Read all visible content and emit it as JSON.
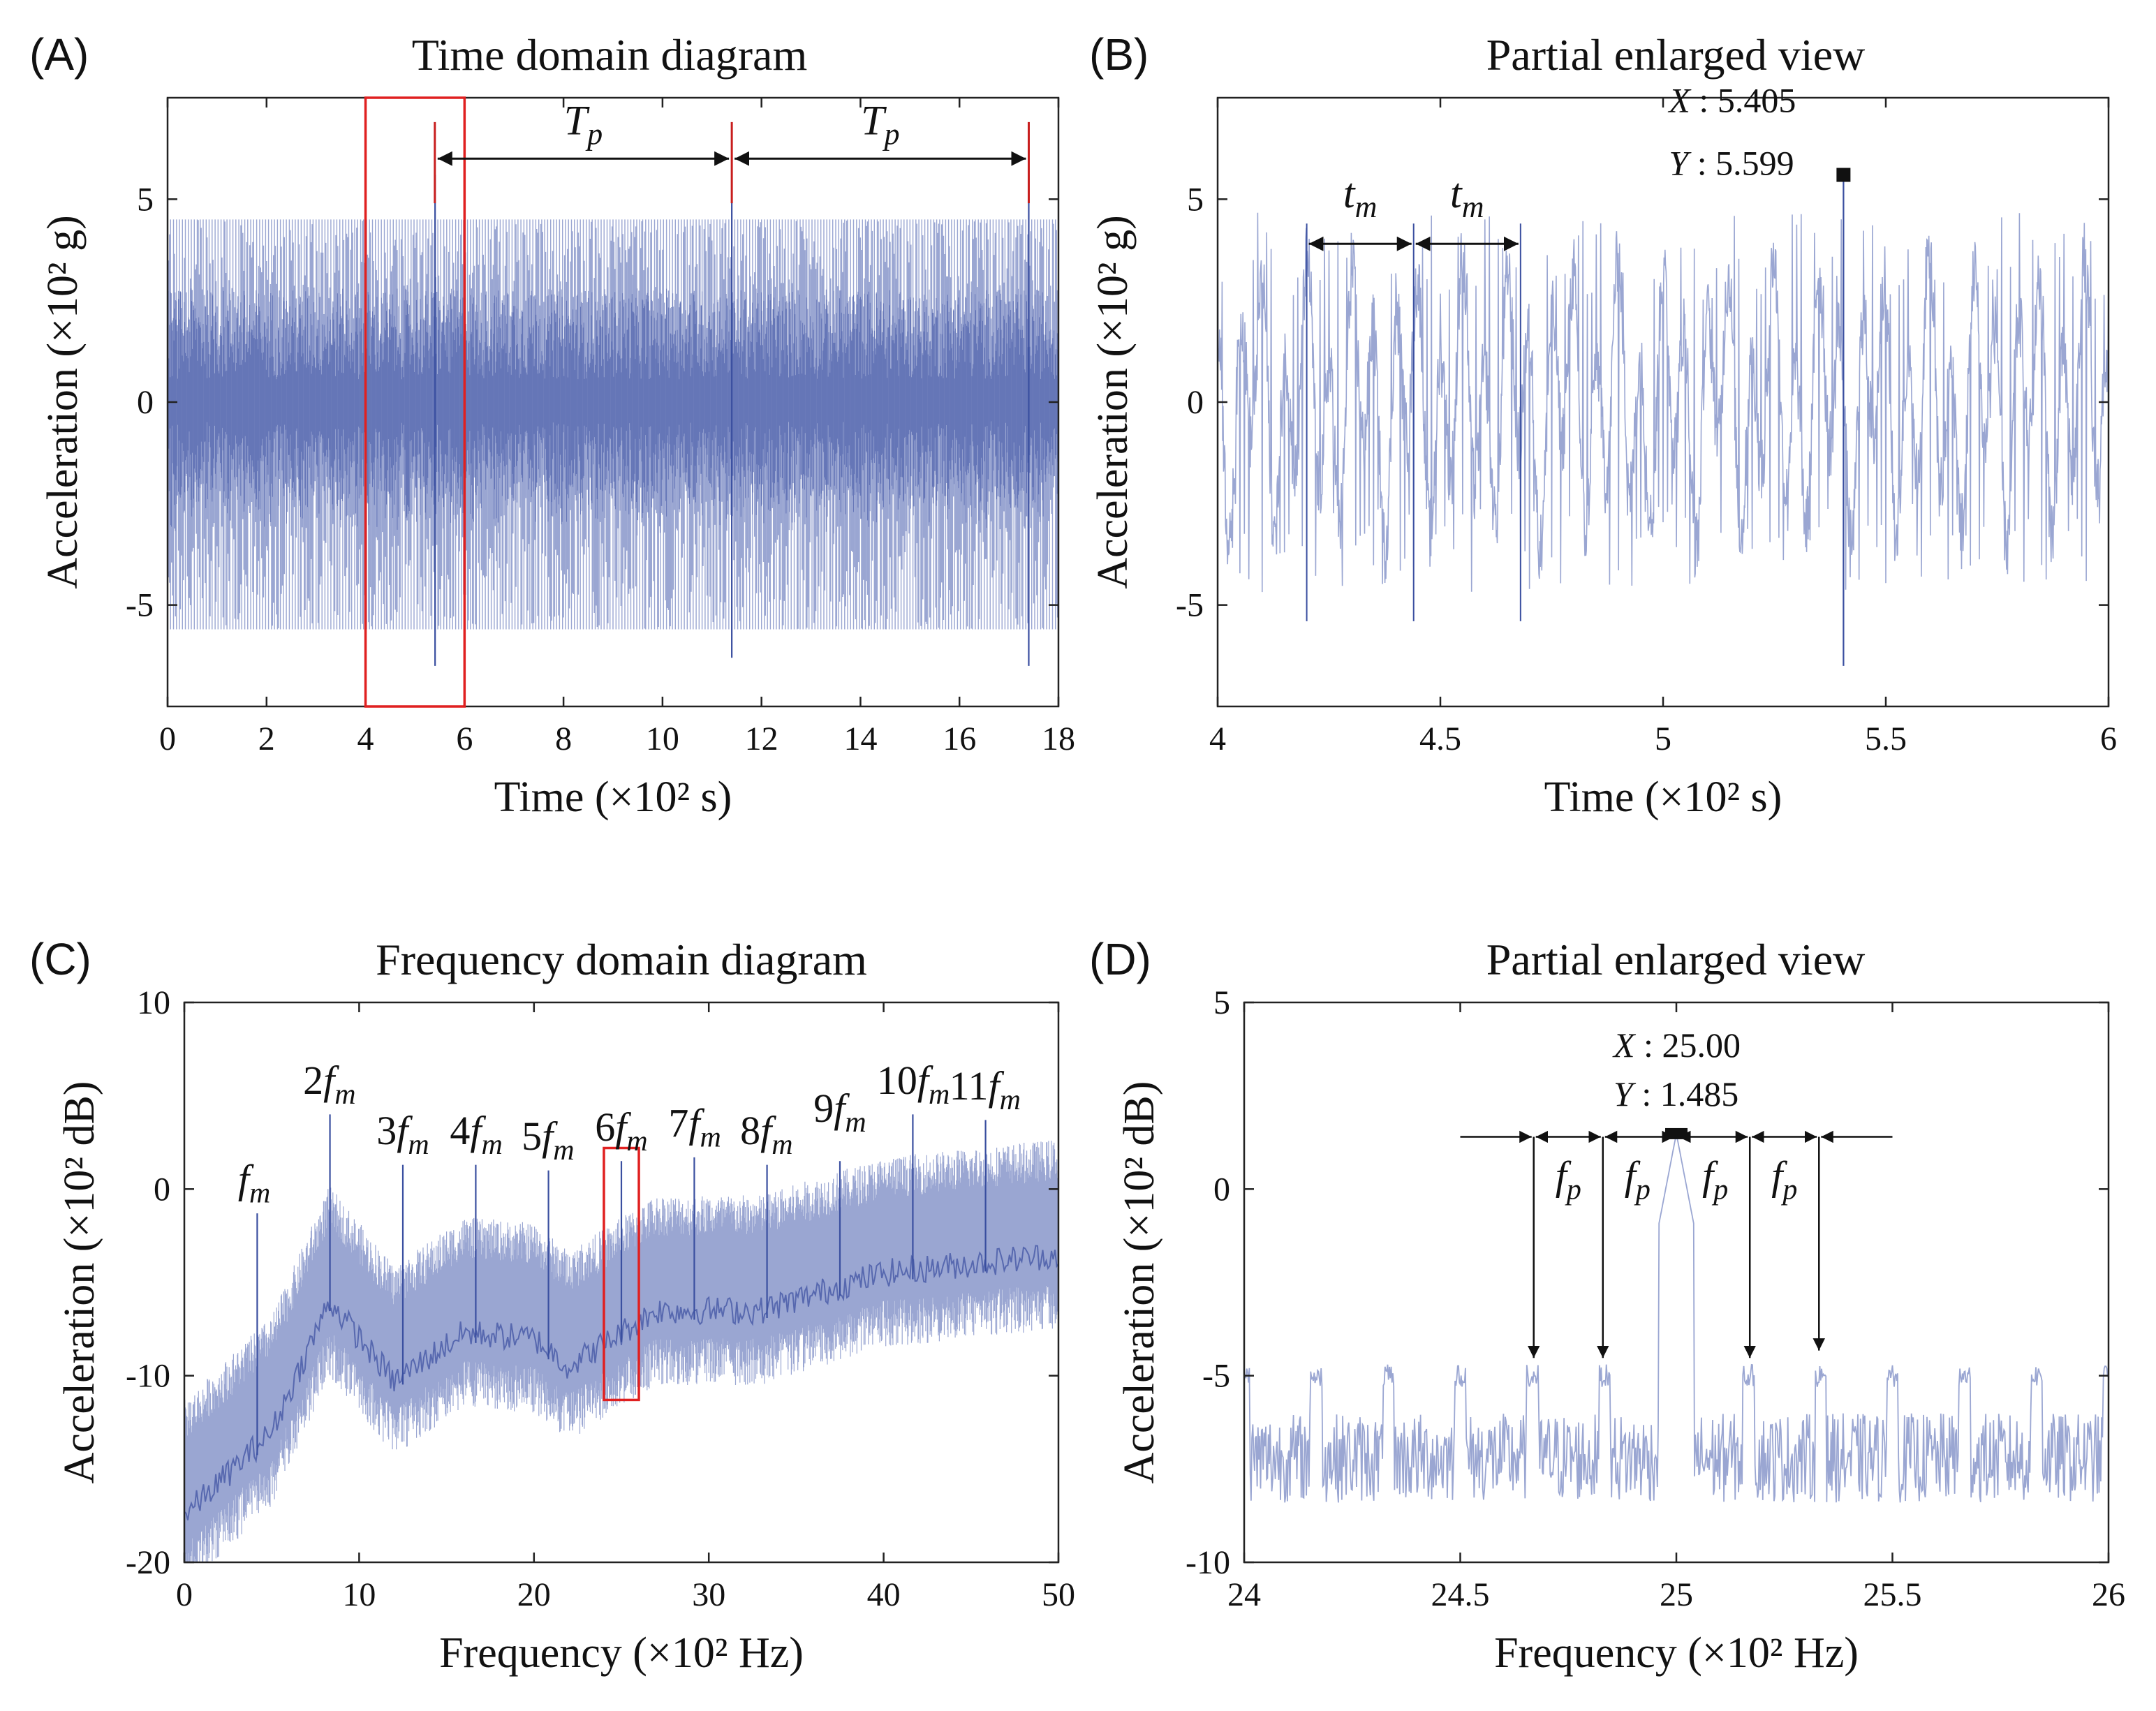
{
  "figure": {
    "colors": {
      "signal": "#3a4fa0",
      "signal_light": "#9aa6d2",
      "highlight_box": "#e02020",
      "markers": "#c81e1e",
      "axes": "#222222"
    }
  },
  "chart_data": [
    {
      "id": "A",
      "panel_letter": "(A)",
      "type": "line",
      "title": "Time domain diagram",
      "xlabel": "Time (×10² s)",
      "ylabel": "Acceleration (×10² g)",
      "xlim": [
        0,
        18
      ],
      "ylim": [
        -7.5,
        7.5
      ],
      "xticks": [
        0,
        2,
        4,
        6,
        8,
        10,
        12,
        14,
        16,
        18
      ],
      "xtick_labels": [
        "0",
        "2",
        "4",
        "6",
        "8",
        "10",
        "12",
        "14",
        "16",
        "18"
      ],
      "yticks": [
        -5,
        0,
        5
      ],
      "ytick_labels": [
        "-5",
        "0",
        "5"
      ],
      "series": [
        {
          "description_kind": "dense vibration signal",
          "envelope_upper": 4.5,
          "envelope_lower": -5.6,
          "impulses": [
            {
              "x": 5.405,
              "y": 5.6,
              "y_min": -6.5
            },
            {
              "x": 11.4,
              "y": 5.6,
              "y_min": -6.3
            },
            {
              "x": 17.4,
              "y": 5.6,
              "y_min": -6.5
            }
          ]
        }
      ],
      "highlight_box": {
        "x": [
          4,
          6
        ],
        "y": [
          -7.5,
          7.5
        ]
      },
      "period_markers": {
        "x": [
          5.4,
          11.4,
          17.4
        ],
        "y": 6.0
      },
      "annotations": [
        {
          "text": "T",
          "sub": "p",
          "x": 8.4,
          "y": 6.6
        },
        {
          "text": "T",
          "sub": "p",
          "x": 14.4,
          "y": 6.6
        }
      ]
    },
    {
      "id": "B",
      "panel_letter": "(B)",
      "type": "line",
      "title": "Partial enlarged view",
      "xlabel": "Time (×10² s)",
      "ylabel": "Acceleration (×10² g)",
      "xlim": [
        4,
        6
      ],
      "ylim": [
        -7.5,
        7.5
      ],
      "xticks": [
        4,
        4.5,
        5,
        5.5,
        6
      ],
      "xtick_labels": [
        "4",
        "4.5",
        "5",
        "5.5",
        "6"
      ],
      "yticks": [
        -5,
        0,
        5
      ],
      "ytick_labels": [
        "-5",
        "0",
        "5"
      ],
      "series": [
        {
          "description_kind": "zoomed vibration signal",
          "mesh_period": 0.24,
          "mesh_peaks_x": [
            4.2,
            4.44,
            4.68
          ],
          "peak": {
            "x": 5.405,
            "y": 5.599
          }
        }
      ],
      "datatip": {
        "x_label": "X",
        "x_value": "5.405",
        "y_label": "Y",
        "y_value": "5.599",
        "x": 5.405,
        "y": 5.599
      },
      "annotations": [
        {
          "text": "t",
          "sub": "m",
          "x": 4.32,
          "y": 4.8
        },
        {
          "text": "t",
          "sub": "m",
          "x": 4.56,
          "y": 4.8
        }
      ]
    },
    {
      "id": "C",
      "panel_letter": "(C)",
      "type": "line",
      "title": "Frequency domain diagram",
      "xlabel": "Frequency (×10² Hz)",
      "ylabel": "Acceleration (×10² dB)",
      "xlim": [
        0,
        50
      ],
      "ylim": [
        -20,
        10
      ],
      "xticks": [
        0,
        10,
        20,
        30,
        40,
        50
      ],
      "xtick_labels": [
        "0",
        "10",
        "20",
        "30",
        "40",
        "50"
      ],
      "yticks": [
        -20,
        -10,
        0,
        10
      ],
      "ytick_labels": [
        "-20",
        "-10",
        "0",
        "10"
      ],
      "series": [
        {
          "description_kind": "spectrum",
          "baseline": [
            [
              0,
              -15
            ],
            [
              5,
              -10.5
            ],
            [
              8.3,
              -3.5
            ],
            [
              12,
              -7.8
            ],
            [
              16,
              -5.2
            ],
            [
              20,
              -5.5
            ],
            [
              22,
              -7
            ],
            [
              27,
              -4
            ],
            [
              33,
              -4
            ],
            [
              40,
              -2
            ],
            [
              50,
              -1
            ]
          ],
          "harmonics": [
            {
              "k": 1,
              "x": 4.17,
              "y": -1.3
            },
            {
              "k": 2,
              "x": 8.33,
              "y": 4.0
            },
            {
              "k": 3,
              "x": 12.5,
              "y": 1.3
            },
            {
              "k": 4,
              "x": 16.67,
              "y": 1.3
            },
            {
              "k": 5,
              "x": 20.83,
              "y": 1.0
            },
            {
              "k": 6,
              "x": 25.0,
              "y": 1.5
            },
            {
              "k": 7,
              "x": 29.17,
              "y": 1.7
            },
            {
              "k": 8,
              "x": 33.33,
              "y": 1.3
            },
            {
              "k": 9,
              "x": 37.5,
              "y": 1.5
            },
            {
              "k": 10,
              "x": 41.67,
              "y": 4.0
            },
            {
              "k": 11,
              "x": 45.83,
              "y": 3.7
            }
          ]
        }
      ],
      "highlight_box": {
        "x": [
          24,
          26
        ],
        "y": [
          -11.3,
          2.2
        ]
      },
      "annotations": [
        {
          "text": "",
          "ital": "f",
          "sub": "m",
          "x": 4.0,
          "y": -0.2
        },
        {
          "text": "2",
          "ital": "f",
          "sub": "m",
          "x": 8.3,
          "y": 5.1
        },
        {
          "text": "3",
          "ital": "f",
          "sub": "m",
          "x": 12.5,
          "y": 2.4
        },
        {
          "text": "4",
          "ital": "f",
          "sub": "m",
          "x": 16.7,
          "y": 2.4
        },
        {
          "text": "5",
          "ital": "f",
          "sub": "m",
          "x": 20.8,
          "y": 2.1
        },
        {
          "text": "6",
          "ital": "f",
          "sub": "m",
          "x": 25.0,
          "y": 2.6
        },
        {
          "text": "7",
          "ital": "f",
          "sub": "m",
          "x": 29.2,
          "y": 2.8
        },
        {
          "text": "8",
          "ital": "f",
          "sub": "m",
          "x": 33.3,
          "y": 2.4
        },
        {
          "text": "9",
          "ital": "f",
          "sub": "m",
          "x": 37.5,
          "y": 3.6
        },
        {
          "text": "10",
          "ital": "f",
          "sub": "m",
          "x": 41.7,
          "y": 5.1
        },
        {
          "text": "11",
          "ital": "f",
          "sub": "m",
          "x": 45.8,
          "y": 4.8
        }
      ]
    },
    {
      "id": "D",
      "panel_letter": "(D)",
      "type": "line",
      "title": "Partial enlarged view",
      "xlabel": "Frequency (×10² Hz)",
      "ylabel": "Acceleration (×10² dB)",
      "xlim": [
        24,
        26
      ],
      "ylim": [
        -10,
        5
      ],
      "xticks": [
        24,
        24.5,
        25,
        25.5,
        26
      ],
      "xtick_labels": [
        "24",
        "24.5",
        "25",
        "25.5",
        "26"
      ],
      "yticks": [
        -10,
        -5,
        0,
        5
      ],
      "ytick_labels": [
        "-10",
        "-5",
        "0",
        "5"
      ],
      "series": [
        {
          "description_kind": "zoomed spectrum",
          "peak": {
            "x": 25.0,
            "y": 1.485
          },
          "sidebands": [
            {
              "x": 24.67,
              "y": -4.6
            },
            {
              "x": 24.83,
              "y": -4.6
            },
            {
              "x": 25.17,
              "y": -4.6
            },
            {
              "x": 25.33,
              "y": -4.4
            }
          ],
          "noise_floor": -7.2
        }
      ],
      "datatip": {
        "x_label": "X",
        "x_value": "25.00",
        "y_label": "Y",
        "y_value": "1.485",
        "x": 25.0,
        "y": 1.485
      },
      "sideband_arrows": {
        "y": 1.4,
        "x": [
          24.67,
          24.83,
          25.0,
          25.17,
          25.33
        ],
        "extend": [
          24.5,
          25.5
        ]
      },
      "annotations": [
        {
          "text": "f",
          "sub": "p",
          "x": 24.75,
          "y": 0.0
        },
        {
          "text": "f",
          "sub": "p",
          "x": 24.91,
          "y": 0.0
        },
        {
          "text": "f",
          "sub": "p",
          "x": 25.09,
          "y": 0.0
        },
        {
          "text": "f",
          "sub": "p",
          "x": 25.25,
          "y": 0.0
        }
      ]
    }
  ]
}
